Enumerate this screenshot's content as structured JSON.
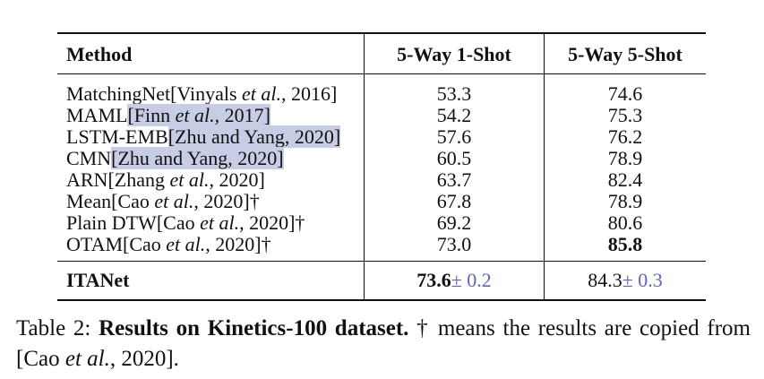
{
  "table": {
    "headers": [
      "Method",
      "5-Way 1-Shot",
      "5-Way 5-Shot"
    ],
    "rows": [
      {
        "name": "MatchingNet",
        "cite_pre": "[Vinyals ",
        "cite_em": "et al.",
        "cite_post": ", 2016]",
        "dagger": "",
        "v1": "53.3",
        "v2": "74.6"
      },
      {
        "name": "MAML",
        "cite_pre": "[Finn ",
        "cite_em": "et al.",
        "cite_post": ", 2017]",
        "dagger": "",
        "v1": "54.2",
        "v2": "75.3"
      },
      {
        "name": "LSTM-EMB",
        "cite_pre": "[Zhu and Yang, 2020]",
        "cite_em": "",
        "cite_post": "",
        "dagger": "",
        "v1": "57.6",
        "v2": "76.2"
      },
      {
        "name": "CMN",
        "cite_pre": "[Zhu and Yang, 2020]",
        "cite_em": "",
        "cite_post": "",
        "dagger": "",
        "v1": "60.5",
        "v2": "78.9"
      },
      {
        "name": "ARN",
        "cite_pre": "[Zhang ",
        "cite_em": "et al.",
        "cite_post": ", 2020]",
        "dagger": "",
        "v1": "63.7",
        "v2": "82.4"
      },
      {
        "name": "Mean",
        "cite_pre": "[Cao ",
        "cite_em": "et al.",
        "cite_post": ", 2020]",
        "dagger": "†",
        "v1": "67.8",
        "v2": "78.9"
      },
      {
        "name": "Plain DTW",
        "cite_pre": "[Cao ",
        "cite_em": "et al.",
        "cite_post": ", 2020]",
        "dagger": "†",
        "v1": "69.2",
        "v2": "80.6"
      },
      {
        "name": "OTAM",
        "cite_pre": "[Cao ",
        "cite_em": "et al.",
        "cite_post": ", 2020]",
        "dagger": "†",
        "v1": "73.0",
        "v2": "85.8"
      }
    ],
    "final_row": {
      "name": "ITANet",
      "v1": "73.6",
      "v1_std": "± 0.2",
      "v2": "84.3",
      "v2_std": "± 0.3"
    }
  },
  "caption": {
    "label": "Table 2: ",
    "title": "Results on Kinetics-100 dataset.",
    "text_a": " † means the results are copied from [Cao ",
    "text_em": "et al.",
    "text_b": ", 2020]."
  },
  "colors": {
    "highlight": "#c8cde6",
    "std_text": "#5b63c4",
    "text": "#111111"
  }
}
